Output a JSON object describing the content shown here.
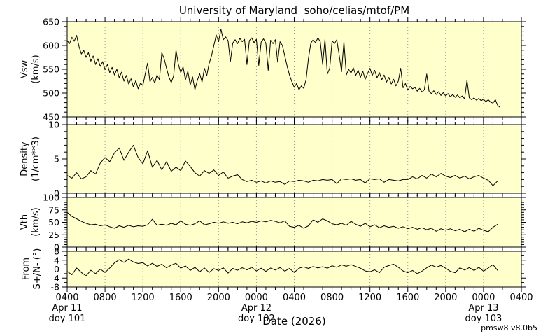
{
  "version": "pmsw8 v8.0b5",
  "chart_data": {
    "type": "line",
    "title": "University of Maryland  soho/celias/mtof/PM",
    "xlabel": "Date (2026)",
    "x_unit": "hours since first tick (0400 Apr 11 2026)",
    "span_hours": 48,
    "major_step": 4,
    "minor_step": 1,
    "grid": "vertical dotted at 4-hour major ticks",
    "x_ticks": [
      "0400",
      "0800",
      "1200",
      "1600",
      "2000",
      "0000",
      "0400",
      "0800",
      "1200",
      "1600",
      "2000",
      "0000",
      "0400"
    ],
    "x_dates": [
      {
        "tick_index": 0,
        "line1": "Apr 11",
        "line2": "doy 101"
      },
      {
        "tick_index": 5,
        "line1": "Apr 12",
        "line2": "doy 102"
      },
      {
        "tick_index": 11,
        "line1": "Apr 13",
        "line2": "doy 103"
      }
    ],
    "colors": {
      "plot_bg": "#FFFFCC",
      "line": "#000000",
      "grid": "#999999",
      "zero_line": "#5050E0",
      "frame": "#000000",
      "text": "#000000"
    },
    "panels": [
      {
        "name": "vsw",
        "ylabel": "Vsw",
        "yunit": "(km/s)",
        "ylim": [
          450,
          650
        ],
        "yticks": [
          450,
          500,
          550,
          600,
          650
        ],
        "yminor": 10,
        "x0": 0,
        "dx": 0.25,
        "values": [
          610,
          604,
          617,
          609,
          621,
          598,
          582,
          590,
          575,
          585,
          567,
          578,
          560,
          572,
          556,
          566,
          549,
          560,
          543,
          554,
          538,
          550,
          532,
          544,
          525,
          537,
          519,
          530,
          513,
          526,
          509,
          521,
          516,
          540,
          563,
          524,
          533,
          521,
          538,
          528,
          585,
          572,
          552,
          534,
          522,
          536,
          590,
          560,
          543,
          555,
          528,
          546,
          517,
          534,
          507,
          526,
          541,
          523,
          552,
          536,
          562,
          578,
          600,
          622,
          608,
          634,
          612,
          618,
          610,
          566,
          605,
          612,
          604,
          615,
          608,
          613,
          560,
          610,
          616,
          606,
          613,
          558,
          607,
          614,
          605,
          548,
          611,
          604,
          612,
          565,
          608,
          600,
          578,
          556,
          538,
          524,
          512,
          520,
          507,
          515,
          510,
          528,
          573,
          605,
          612,
          606,
          616,
          608,
          560,
          613,
          540,
          552,
          610,
          604,
          612,
          580,
          545,
          608,
          538,
          550,
          542,
          553,
          537,
          548,
          533,
          546,
          529,
          541,
          552,
          537,
          548,
          532,
          543,
          528,
          538,
          523,
          533,
          519,
          529,
          515,
          525,
          552,
          511,
          520,
          506,
          514,
          509,
          512,
          504,
          510,
          502,
          507,
          540,
          503,
          499,
          505,
          497,
          503,
          495,
          501,
          494,
          499,
          492,
          497,
          491,
          496,
          490,
          494,
          488,
          527,
          490,
          486,
          490,
          485,
          489,
          484,
          487,
          482,
          486,
          481,
          479,
          486,
          474,
          470
        ]
      },
      {
        "name": "density",
        "ylabel": "Density",
        "yunit": "(1/cm**3)",
        "ylim": [
          0,
          10
        ],
        "yticks": [
          0,
          5,
          10
        ],
        "yminor": 1,
        "x0": 0,
        "dx": 0.5,
        "values": [
          2.6,
          2.2,
          3.0,
          2.1,
          2.4,
          3.3,
          2.8,
          4.4,
          5.2,
          4.6,
          5.9,
          6.6,
          4.8,
          6.0,
          7.0,
          5.2,
          4.3,
          6.2,
          3.8,
          4.8,
          3.4,
          4.6,
          3.2,
          3.8,
          3.3,
          4.7,
          3.9,
          3.0,
          2.5,
          3.3,
          2.9,
          3.4,
          2.6,
          3.1,
          2.2,
          2.5,
          2.7,
          2.0,
          1.7,
          1.9,
          1.6,
          1.8,
          1.5,
          1.8,
          1.6,
          1.7,
          1.3,
          1.8,
          1.7,
          1.9,
          1.8,
          1.6,
          1.9,
          1.8,
          2.0,
          1.9,
          2.0,
          1.4,
          2.1,
          2.0,
          2.1,
          1.9,
          2.0,
          1.5,
          2.1,
          2.0,
          2.1,
          1.6,
          2.0,
          1.9,
          1.8,
          2.0,
          2.0,
          2.4,
          2.1,
          2.6,
          2.2,
          2.8,
          2.4,
          2.9,
          2.5,
          2.3,
          2.6,
          2.2,
          2.5,
          2.1,
          2.4,
          2.6,
          2.2,
          1.9,
          1.1,
          1.8
        ]
      },
      {
        "name": "vth",
        "ylabel": "Vth",
        "yunit": "(km/s)",
        "ylim": [
          0,
          100
        ],
        "yticks": [
          0,
          25,
          50,
          75,
          100
        ],
        "yminor": 5,
        "x0": 0,
        "dx": 0.5,
        "values": [
          70,
          62,
          57,
          52,
          48,
          45,
          46,
          43,
          45,
          41,
          38,
          43,
          40,
          44,
          41,
          43,
          42,
          45,
          56,
          44,
          46,
          44,
          48,
          45,
          53,
          46,
          44,
          47,
          53,
          45,
          47,
          50,
          48,
          51,
          48,
          50,
          47,
          51,
          49,
          52,
          50,
          53,
          51,
          54,
          52,
          49,
          53,
          42,
          40,
          44,
          38,
          43,
          55,
          50,
          57,
          53,
          47,
          45,
          48,
          44,
          52,
          46,
          42,
          48,
          41,
          45,
          39,
          43,
          40,
          42,
          38,
          41,
          37,
          40,
          36,
          39,
          35,
          38,
          32,
          37,
          34,
          37,
          33,
          36,
          31,
          36,
          32,
          38,
          34,
          31,
          40,
          46
        ]
      },
      {
        "name": "ns-angle",
        "ylabel": "From",
        "yunit": "S+/N- (°)",
        "ylim": [
          -8,
          8
        ],
        "yticks": [
          -8,
          -4,
          0,
          4,
          8
        ],
        "yminor": 2,
        "zero_line": true,
        "x0": 0,
        "dx": 0.5,
        "values": [
          -1.0,
          -2.5,
          0.5,
          -1.5,
          -3.0,
          -0.5,
          -2.0,
          0.0,
          -1.5,
          0.5,
          2.8,
          4.2,
          3.0,
          4.5,
          3.2,
          2.5,
          2.9,
          1.4,
          2.6,
          1.2,
          2.2,
          0.6,
          1.8,
          2.6,
          0.4,
          1.4,
          -0.6,
          0.8,
          -1.2,
          0.5,
          -1.5,
          0.2,
          -0.6,
          0.6,
          -1.8,
          0.3,
          -0.5,
          0.6,
          -0.3,
          0.8,
          -0.8,
          0.4,
          -1.0,
          0.5,
          -0.4,
          0.7,
          -0.9,
          0.3,
          -1.5,
          0.4,
          1.0,
          0.3,
          1.2,
          0.5,
          1.1,
          0.4,
          1.5,
          0.8,
          1.9,
          1.3,
          2.0,
          1.2,
          0.4,
          -0.8,
          -1.2,
          -0.3,
          -1.6,
          0.8,
          1.6,
          2.2,
          0.8,
          -0.8,
          -1.6,
          -0.6,
          -2.0,
          -0.9,
          0.6,
          1.8,
          0.9,
          1.6,
          0.4,
          -1.0,
          -1.6,
          0.6,
          -0.4,
          0.7,
          -0.6,
          0.8,
          -0.9,
          0.5,
          2.0,
          -0.6
        ]
      }
    ]
  }
}
